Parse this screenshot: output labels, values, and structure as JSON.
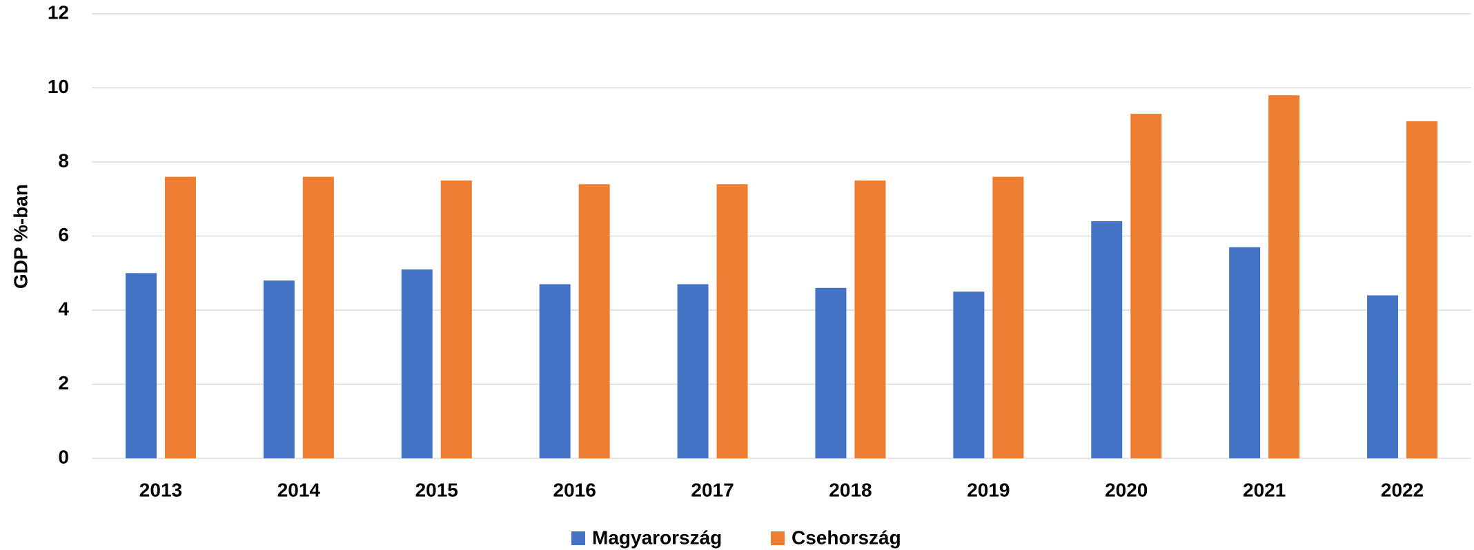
{
  "chart_data": {
    "type": "bar",
    "y_label": "GDP %-ban",
    "categories": [
      "2013",
      "2014",
      "2015",
      "2016",
      "2017",
      "2018",
      "2019",
      "2020",
      "2021",
      "2022"
    ],
    "series": [
      {
        "name": "Magyarország",
        "color": "#4472c4",
        "values": [
          5.0,
          4.8,
          5.1,
          4.7,
          4.7,
          4.6,
          4.5,
          6.4,
          5.7,
          4.4
        ]
      },
      {
        "name": "Csehország",
        "color": "#ed7d31",
        "values": [
          7.6,
          7.6,
          7.5,
          7.4,
          7.4,
          7.5,
          7.6,
          9.3,
          9.8,
          9.1
        ]
      }
    ],
    "ylim": [
      0,
      12
    ],
    "yticks": [
      0,
      2,
      4,
      6,
      8,
      10,
      12
    ],
    "grid": true
  }
}
